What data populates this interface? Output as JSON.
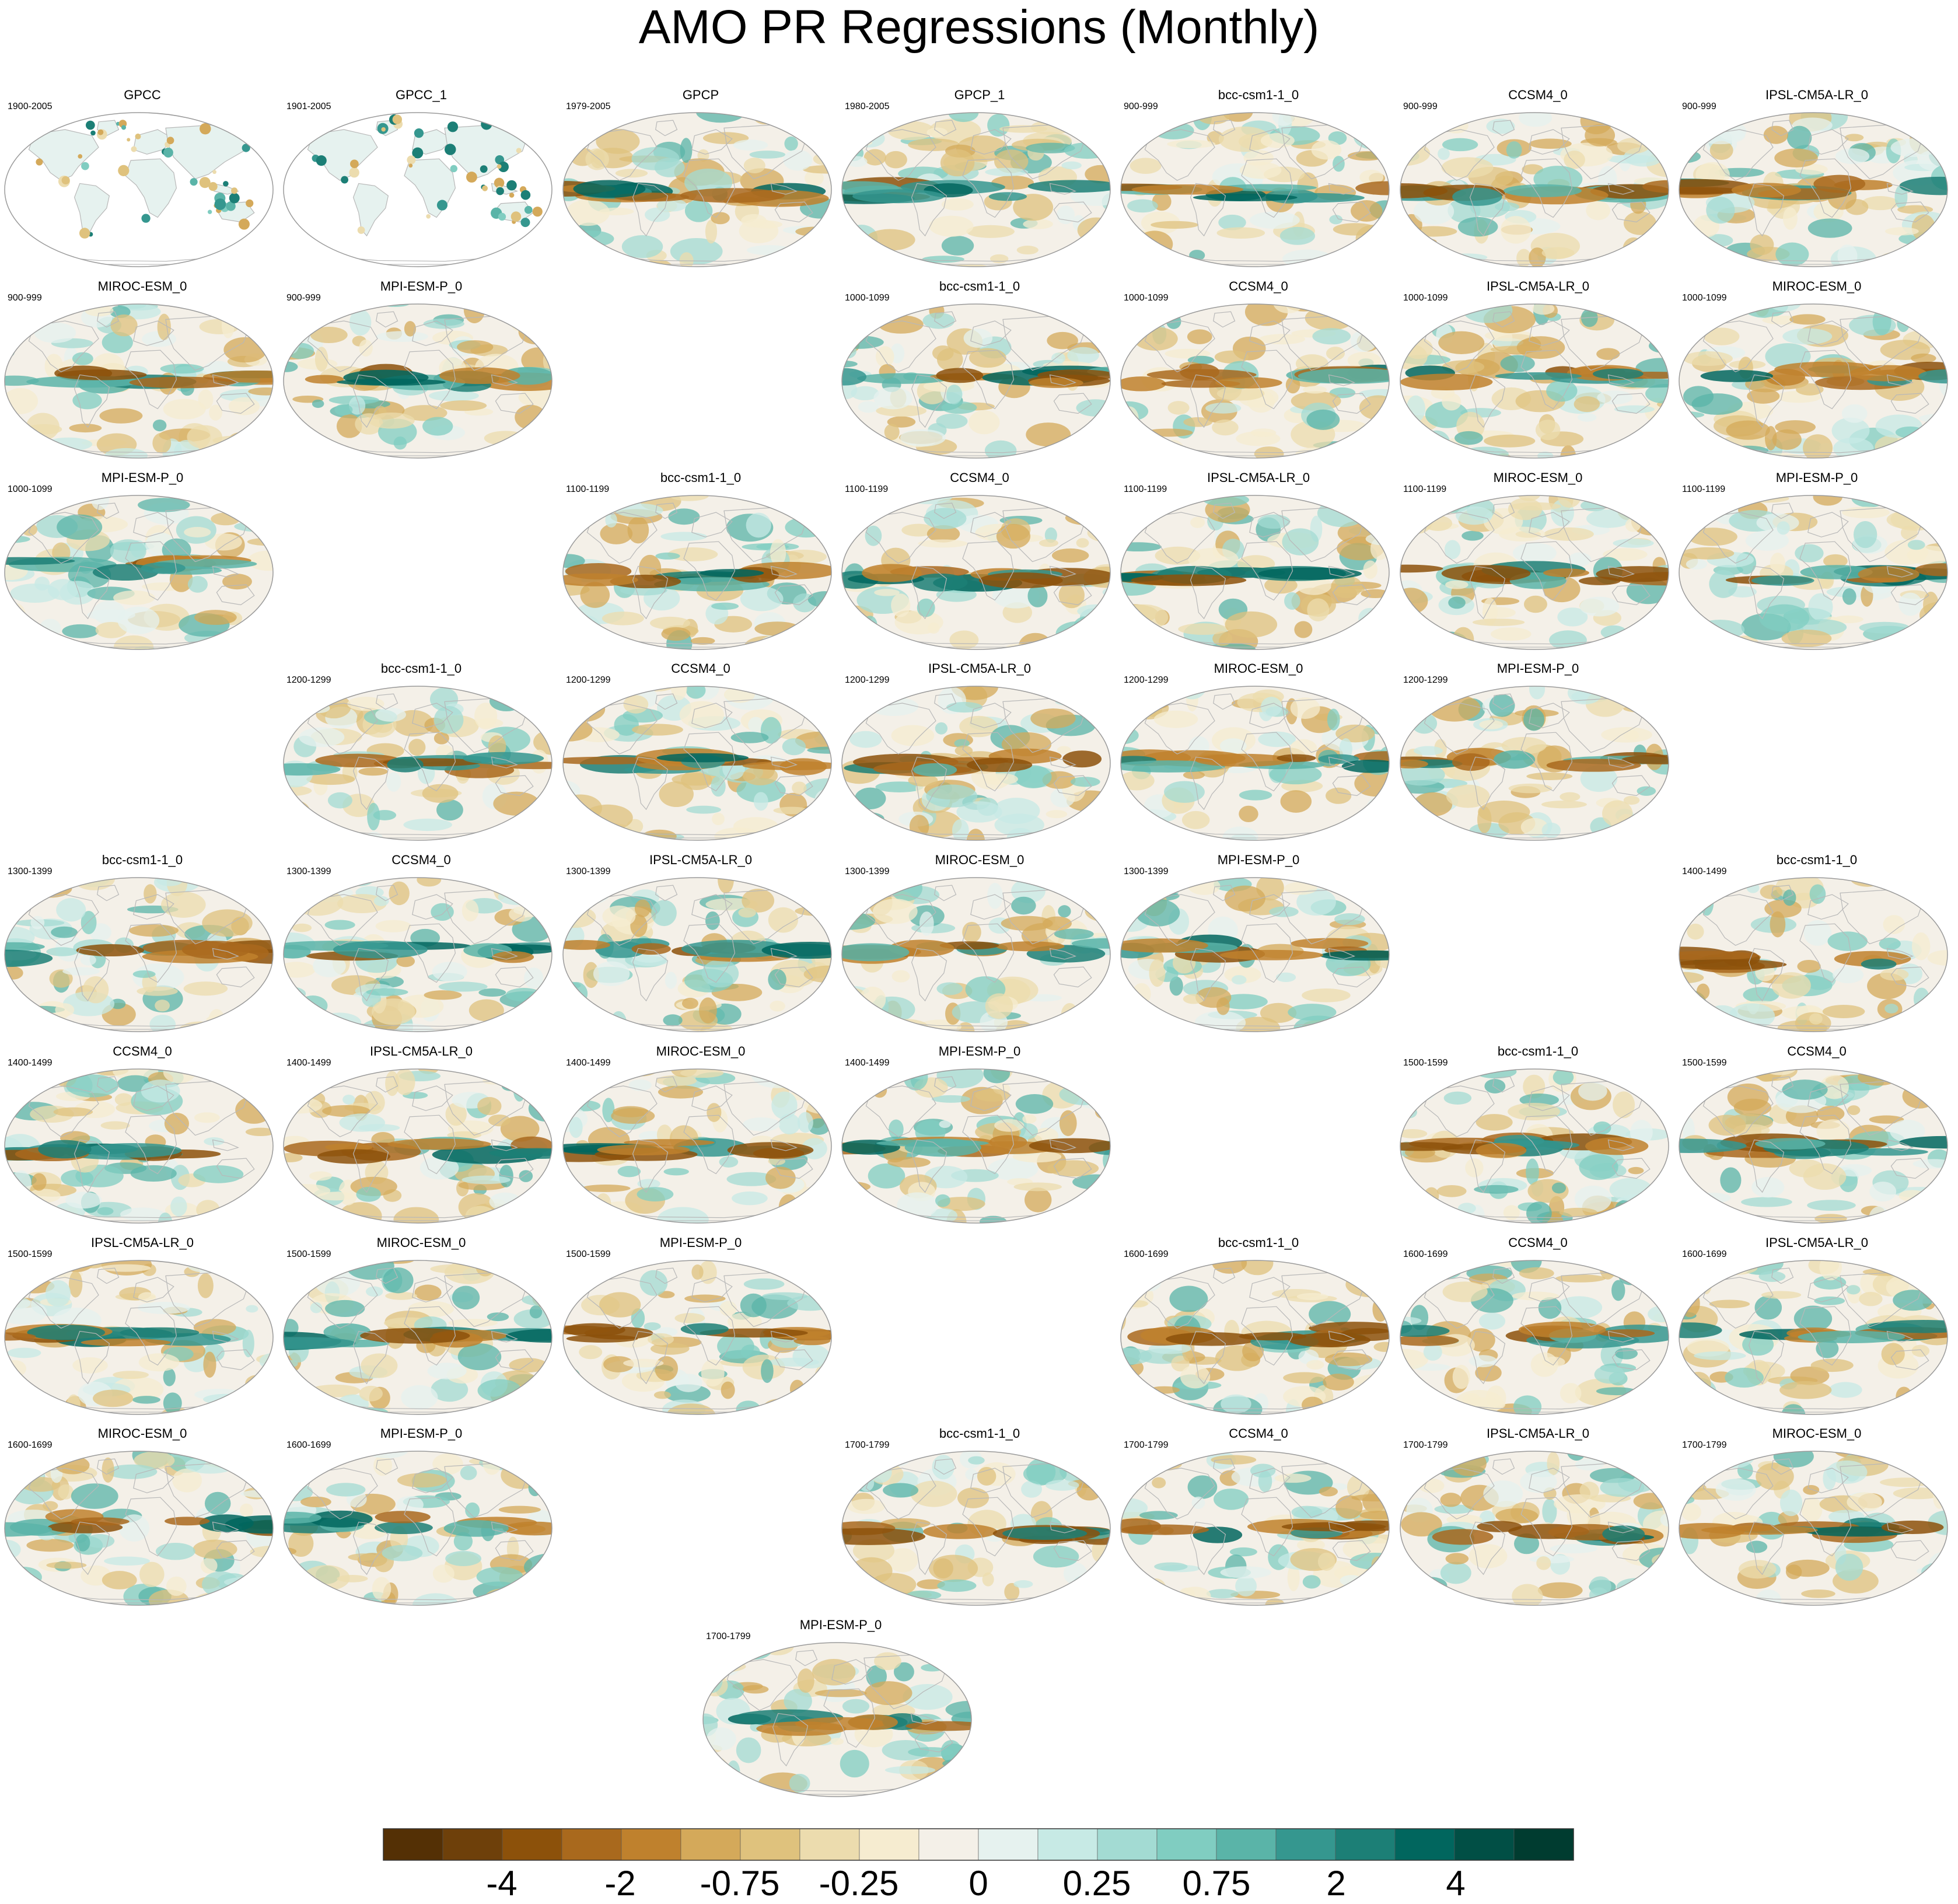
{
  "title": "AMO PR Regressions (Monthly)",
  "colors": {
    "scale": [
      "#543005",
      "#6e400a",
      "#8c510a",
      "#a9691d",
      "#bf812d",
      "#d4a95a",
      "#dfc27d",
      "#ecdcae",
      "#f6ecd0",
      "#f4f0e8",
      "#e6f2ef",
      "#c7eae5",
      "#a3dbd3",
      "#80cdc1",
      "#5ab4a8",
      "#35978f",
      "#1c7f76",
      "#01665e",
      "#014f45",
      "#003c30"
    ],
    "land_outline": "#b8b8b8",
    "frame": "#9a9a9a",
    "dry": "#8c510a",
    "wet": "#01665e"
  },
  "colorbar": {
    "labels": [
      "-4",
      "-2",
      "-0.75",
      "-0.25",
      "0",
      "0.25",
      "0.75",
      "2",
      "4"
    ]
  },
  "panels": [
    {
      "name": "GPCC",
      "period": "1900-2005",
      "type": "obs_land"
    },
    {
      "name": "GPCC_1",
      "period": "1901-2005",
      "type": "obs_land"
    },
    {
      "name": "GPCP",
      "period": "1979-2005",
      "type": "full"
    },
    {
      "name": "GPCP_1",
      "period": "1980-2005",
      "type": "full"
    },
    {
      "name": "bcc-csm1-1_0",
      "period": "900-999",
      "type": "full"
    },
    {
      "name": "CCSM4_0",
      "period": "900-999",
      "type": "full"
    },
    {
      "name": "IPSL-CM5A-LR_0",
      "period": "900-999",
      "type": "full"
    },
    {
      "name": "MIROC-ESM_0",
      "period": "900-999",
      "type": "full"
    },
    {
      "name": "MPI-ESM-P_0",
      "period": "900-999",
      "type": "full"
    },
    {
      "name": "bcc-csm1-1_0",
      "period": "1000-1099",
      "type": "full"
    },
    {
      "name": "CCSM4_0",
      "period": "1000-1099",
      "type": "full"
    },
    {
      "name": "IPSL-CM5A-LR_0",
      "period": "1000-1099",
      "type": "full"
    },
    {
      "name": "MIROC-ESM_0",
      "period": "1000-1099",
      "type": "full"
    },
    {
      "name": "MPI-ESM-P_0",
      "period": "1000-1099",
      "type": "full"
    },
    {
      "name": "bcc-csm1-1_0",
      "period": "1100-1199",
      "type": "full"
    },
    {
      "name": "CCSM4_0",
      "period": "1100-1199",
      "type": "full"
    },
    {
      "name": "IPSL-CM5A-LR_0",
      "period": "1100-1199",
      "type": "full"
    },
    {
      "name": "MIROC-ESM_0",
      "period": "1100-1199",
      "type": "full"
    },
    {
      "name": "MPI-ESM-P_0",
      "period": "1100-1199",
      "type": "full"
    },
    {
      "name": "bcc-csm1-1_0",
      "period": "1200-1299",
      "type": "full"
    },
    {
      "name": "CCSM4_0",
      "period": "1200-1299",
      "type": "full"
    },
    {
      "name": "IPSL-CM5A-LR_0",
      "period": "1200-1299",
      "type": "full"
    },
    {
      "name": "MIROC-ESM_0",
      "period": "1200-1299",
      "type": "full"
    },
    {
      "name": "MPI-ESM-P_0",
      "period": "1200-1299",
      "type": "full"
    },
    {
      "name": "bcc-csm1-1_0",
      "period": "1300-1399",
      "type": "full"
    },
    {
      "name": "CCSM4_0",
      "period": "1300-1399",
      "type": "full"
    },
    {
      "name": "IPSL-CM5A-LR_0",
      "period": "1300-1399",
      "type": "full"
    },
    {
      "name": "MIROC-ESM_0",
      "period": "1300-1399",
      "type": "full"
    },
    {
      "name": "MPI-ESM-P_0",
      "period": "1300-1399",
      "type": "full"
    },
    {
      "name": "bcc-csm1-1_0",
      "period": "1400-1499",
      "type": "full"
    },
    {
      "name": "CCSM4_0",
      "period": "1400-1499",
      "type": "full"
    },
    {
      "name": "IPSL-CM5A-LR_0",
      "period": "1400-1499",
      "type": "full"
    },
    {
      "name": "MIROC-ESM_0",
      "period": "1400-1499",
      "type": "full"
    },
    {
      "name": "MPI-ESM-P_0",
      "period": "1400-1499",
      "type": "full"
    },
    {
      "name": "bcc-csm1-1_0",
      "period": "1500-1599",
      "type": "full"
    },
    {
      "name": "CCSM4_0",
      "period": "1500-1599",
      "type": "full"
    },
    {
      "name": "IPSL-CM5A-LR_0",
      "period": "1500-1599",
      "type": "full"
    },
    {
      "name": "MIROC-ESM_0",
      "period": "1500-1599",
      "type": "full"
    },
    {
      "name": "MPI-ESM-P_0",
      "period": "1500-1599",
      "type": "full"
    },
    {
      "name": "bcc-csm1-1_0",
      "period": "1600-1699",
      "type": "full"
    },
    {
      "name": "CCSM4_0",
      "period": "1600-1699",
      "type": "full"
    },
    {
      "name": "IPSL-CM5A-LR_0",
      "period": "1600-1699",
      "type": "full"
    },
    {
      "name": "MIROC-ESM_0",
      "period": "1600-1699",
      "type": "full"
    },
    {
      "name": "MPI-ESM-P_0",
      "period": "1600-1699",
      "type": "full"
    },
    {
      "name": "bcc-csm1-1_0",
      "period": "1700-1799",
      "type": "full"
    },
    {
      "name": "CCSM4_0",
      "period": "1700-1799",
      "type": "full"
    },
    {
      "name": "IPSL-CM5A-LR_0",
      "period": "1700-1799",
      "type": "full"
    },
    {
      "name": "MIROC-ESM_0",
      "period": "1700-1799",
      "type": "full"
    },
    {
      "name": "MPI-ESM-P_0",
      "period": "1700-1799",
      "type": "full"
    }
  ]
}
